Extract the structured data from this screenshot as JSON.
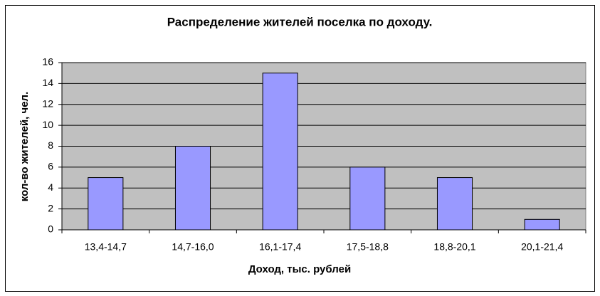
{
  "chart_data": {
    "type": "bar",
    "title": "Распределение жителей поселка по доходу.",
    "x_label": "Доход, тыс. рублей",
    "y_label": "кол-во жителей, чел.",
    "categories": [
      "13,4-14,7",
      "14,7-16,0",
      "16,1-17,4",
      "17,5-18,8",
      "18,8-20,1",
      "20,1-21,4"
    ],
    "values": [
      5,
      8,
      15,
      6,
      5,
      1
    ],
    "color": "#9999ff",
    "ylim": [
      0,
      16
    ],
    "yticks": [
      0,
      2,
      4,
      6,
      8,
      10,
      12,
      14,
      16
    ],
    "grid": true
  }
}
